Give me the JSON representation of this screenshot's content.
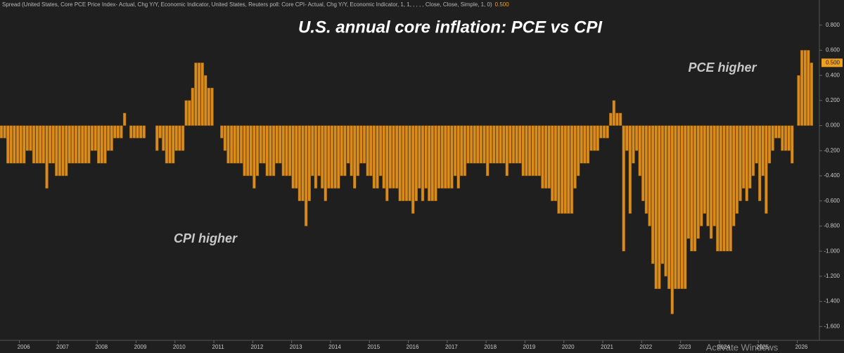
{
  "chart_data": {
    "type": "bar",
    "title": "U.S. annual core inflation: PCE vs CPI",
    "subtitle": "Spread (United States, Core PCE Price Index- Actual, Chg Y/Y, Economic Indicator, United States, Reuters poll: Core CPI- Actual, Chg Y/Y, Economic Indicator, 1, 1, , , , , Close, Close, Simple, 1, 0)",
    "last_value": {
      "value": 0.5,
      "label": "0.500"
    },
    "annotations": [
      "PCE higher",
      "CPI higher"
    ],
    "color": "#d98b1c",
    "grid": false,
    "x": [
      2005.5,
      2005.583,
      2005.667,
      2005.75,
      2005.833,
      2005.917,
      2006,
      2006.083,
      2006.167,
      2006.25,
      2006.333,
      2006.417,
      2006.5,
      2006.583,
      2006.667,
      2006.75,
      2006.833,
      2006.917,
      2007,
      2007.083,
      2007.167,
      2007.25,
      2007.333,
      2007.417,
      2007.5,
      2007.583,
      2007.667,
      2007.75,
      2007.833,
      2007.917,
      2008,
      2008.083,
      2008.167,
      2008.25,
      2008.333,
      2008.417,
      2008.5,
      2008.583,
      2008.667,
      2008.75,
      2008.833,
      2008.917,
      2009,
      2009.083,
      2009.167,
      2009.25,
      2009.333,
      2009.417,
      2009.5,
      2009.583,
      2009.667,
      2009.75,
      2009.833,
      2009.917,
      2010,
      2010.083,
      2010.167,
      2010.25,
      2010.333,
      2010.417,
      2010.5,
      2010.583,
      2010.667,
      2010.75,
      2010.833,
      2010.917,
      2011,
      2011.083,
      2011.167,
      2011.25,
      2011.333,
      2011.417,
      2011.5,
      2011.583,
      2011.667,
      2011.75,
      2011.833,
      2011.917,
      2012,
      2012.083,
      2012.167,
      2012.25,
      2012.333,
      2012.417,
      2012.5,
      2012.583,
      2012.667,
      2012.75,
      2012.833,
      2012.917,
      2013,
      2013.083,
      2013.167,
      2013.25,
      2013.333,
      2013.417,
      2013.5,
      2013.583,
      2013.667,
      2013.75,
      2013.833,
      2013.917,
      2014,
      2014.083,
      2014.167,
      2014.25,
      2014.333,
      2014.417,
      2014.5,
      2014.583,
      2014.667,
      2014.75,
      2014.833,
      2014.917,
      2015,
      2015.083,
      2015.167,
      2015.25,
      2015.333,
      2015.417,
      2015.5,
      2015.583,
      2015.667,
      2015.75,
      2015.833,
      2015.917,
      2016,
      2016.083,
      2016.167,
      2016.25,
      2016.333,
      2016.417,
      2016.5,
      2016.583,
      2016.667,
      2016.75,
      2016.833,
      2016.917,
      2017,
      2017.083,
      2017.167,
      2017.25,
      2017.333,
      2017.417,
      2017.5,
      2017.583,
      2017.667,
      2017.75,
      2017.833,
      2017.917,
      2018,
      2018.083,
      2018.167,
      2018.25,
      2018.333,
      2018.417,
      2018.5,
      2018.583,
      2018.667,
      2018.75,
      2018.833,
      2018.917,
      2019,
      2019.083,
      2019.167,
      2019.25,
      2019.333,
      2019.417,
      2019.5,
      2019.583,
      2019.667,
      2019.75,
      2019.833,
      2019.917,
      2020,
      2020.083,
      2020.167,
      2020.25,
      2020.333,
      2020.417,
      2020.5,
      2020.583,
      2020.667,
      2020.75,
      2020.833,
      2020.917,
      2021,
      2021.083,
      2021.167,
      2021.25,
      2021.333,
      2021.417,
      2021.5,
      2021.583,
      2021.667,
      2021.75,
      2021.833,
      2021.917,
      2022,
      2022.083,
      2022.167,
      2022.25,
      2022.333,
      2022.417,
      2022.5,
      2022.583,
      2022.667,
      2022.75,
      2022.833,
      2022.917,
      2023,
      2023.083,
      2023.167,
      2023.25,
      2023.333,
      2023.417,
      2023.5,
      2023.583,
      2023.667,
      2023.75,
      2023.833,
      2023.917,
      2024,
      2024.083,
      2024.167,
      2024.25,
      2024.333,
      2024.417,
      2024.5,
      2024.583,
      2024.667,
      2024.75,
      2024.833,
      2024.917,
      2025,
      2025.083,
      2025.167,
      2025.25,
      2025.333,
      2025.417,
      2025.5,
      2025.583,
      2025.667,
      2025.75,
      2025.833,
      2025.917,
      2026,
      2026.083,
      2026.167,
      2026.25,
      2026.333
    ],
    "values": [
      -0.1,
      -0.1,
      -0.3,
      -0.3,
      -0.3,
      -0.3,
      -0.3,
      -0.3,
      -0.2,
      -0.2,
      -0.3,
      -0.3,
      -0.3,
      -0.3,
      -0.5,
      -0.3,
      -0.3,
      -0.4,
      -0.4,
      -0.4,
      -0.4,
      -0.3,
      -0.3,
      -0.3,
      -0.3,
      -0.3,
      -0.3,
      -0.3,
      -0.2,
      -0.2,
      -0.3,
      -0.3,
      -0.3,
      -0.2,
      -0.2,
      -0.1,
      -0.1,
      -0.1,
      0.1,
      0,
      -0.1,
      -0.1,
      -0.1,
      -0.1,
      -0.1,
      0,
      0,
      0,
      -0.2,
      -0.1,
      -0.2,
      -0.3,
      -0.3,
      -0.3,
      -0.2,
      -0.2,
      -0.2,
      0.2,
      0.2,
      0.3,
      0.5,
      0.5,
      0.5,
      0.4,
      0.3,
      0.3,
      0,
      0,
      -0.1,
      -0.2,
      -0.3,
      -0.3,
      -0.3,
      -0.3,
      -0.3,
      -0.4,
      -0.4,
      -0.4,
      -0.5,
      -0.4,
      -0.3,
      -0.3,
      -0.4,
      -0.4,
      -0.4,
      -0.3,
      -0.3,
      -0.4,
      -0.4,
      -0.4,
      -0.5,
      -0.5,
      -0.6,
      -0.6,
      -0.8,
      -0.6,
      -0.4,
      -0.5,
      -0.4,
      -0.5,
      -0.6,
      -0.5,
      -0.5,
      -0.5,
      -0.5,
      -0.4,
      -0.4,
      -0.3,
      -0.4,
      -0.5,
      -0.4,
      -0.3,
      -0.3,
      -0.4,
      -0.4,
      -0.5,
      -0.5,
      -0.4,
      -0.5,
      -0.6,
      -0.5,
      -0.5,
      -0.5,
      -0.6,
      -0.6,
      -0.6,
      -0.6,
      -0.7,
      -0.6,
      -0.5,
      -0.6,
      -0.5,
      -0.6,
      -0.6,
      -0.6,
      -0.5,
      -0.5,
      -0.5,
      -0.5,
      -0.5,
      -0.4,
      -0.5,
      -0.4,
      -0.4,
      -0.3,
      -0.3,
      -0.3,
      -0.3,
      -0.3,
      -0.3,
      -0.4,
      -0.3,
      -0.3,
      -0.3,
      -0.3,
      -0.3,
      -0.4,
      -0.3,
      -0.3,
      -0.3,
      -0.3,
      -0.4,
      -0.4,
      -0.4,
      -0.4,
      -0.4,
      -0.4,
      -0.5,
      -0.5,
      -0.5,
      -0.6,
      -0.6,
      -0.7,
      -0.7,
      -0.7,
      -0.7,
      -0.7,
      -0.5,
      -0.4,
      -0.3,
      -0.3,
      -0.3,
      -0.2,
      -0.2,
      -0.2,
      -0.1,
      -0.1,
      -0.1,
      0.1,
      0.2,
      0.1,
      0.1,
      -1.0,
      -0.2,
      -0.7,
      -0.3,
      -0.2,
      -0.4,
      -0.6,
      -0.7,
      -0.8,
      -1.1,
      -1.3,
      -1.3,
      -1.1,
      -1.2,
      -1.3,
      -1.5,
      -1.3,
      -1.3,
      -1.3,
      -1.3,
      -0.9,
      -1.0,
      -1.0,
      -0.9,
      -0.8,
      -0.7,
      -0.8,
      -0.9,
      -0.8,
      -1.0,
      -1.0,
      -1.0,
      -1.0,
      -1.0,
      -0.8,
      -0.7,
      -0.6,
      -0.5,
      -0.6,
      -0.5,
      -0.4,
      -0.3,
      -0.6,
      -0.4,
      -0.7,
      -0.3,
      -0.2,
      -0.1,
      -0.1,
      -0.2,
      -0.2,
      -0.2,
      -0.3,
      0,
      0.4,
      0.6,
      0.6,
      0.6,
      0.5
    ],
    "xlim": [
      2005.5,
      2026.57
    ],
    "xticks": [
      2006,
      2007,
      2008,
      2009,
      2010,
      2011,
      2012,
      2013,
      2014,
      2015,
      2016,
      2017,
      2018,
      2019,
      2020,
      2021,
      2022,
      2023,
      2024,
      2025,
      2026
    ],
    "ylim": [
      -1.71,
      1.0
    ],
    "yticks": [
      {
        "value": 0.8,
        "label": "0.800"
      },
      {
        "value": 0.6,
        "label": "0.600"
      },
      {
        "value": 0.4,
        "label": "0.400"
      },
      {
        "value": 0.2,
        "label": "0.200"
      },
      {
        "value": 0,
        "label": "0.000"
      },
      {
        "value": -0.2,
        "label": "-0.200"
      },
      {
        "value": -0.4,
        "label": "-0.400"
      },
      {
        "value": -0.6,
        "label": "-0.600"
      },
      {
        "value": -0.8,
        "label": "-0.800"
      },
      {
        "value": -1.0,
        "label": "-1.000"
      },
      {
        "value": -1.2,
        "label": "-1.200"
      },
      {
        "value": -1.4,
        "label": "-1.400"
      },
      {
        "value": -1.6,
        "label": "-1.600"
      }
    ]
  },
  "watermark": "Activate Windows"
}
